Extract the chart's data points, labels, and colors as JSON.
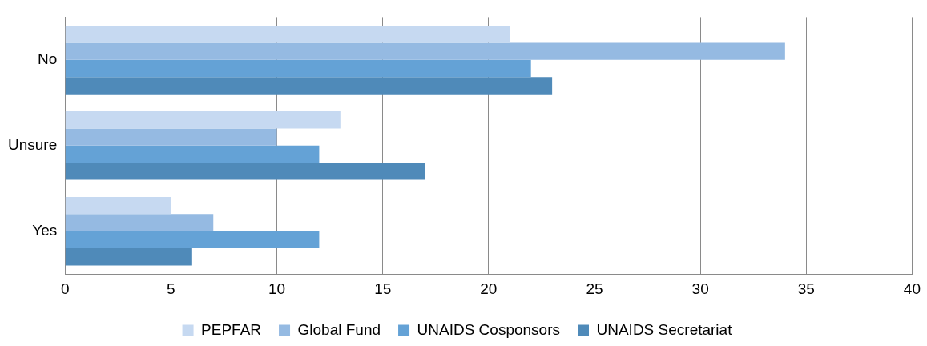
{
  "chart_data": {
    "type": "bar",
    "orientation": "horizontal",
    "categories": [
      "No",
      "Unsure",
      "Yes"
    ],
    "series": [
      {
        "name": "PEPFAR",
        "color": "#c6d9f1",
        "values": [
          21,
          13,
          5
        ]
      },
      {
        "name": "Global Fund",
        "color": "#95bae2",
        "values": [
          34,
          10,
          7
        ]
      },
      {
        "name": "UNAIDS Cosponsors",
        "color": "#64a2d6",
        "values": [
          22,
          12,
          12
        ]
      },
      {
        "name": "UNAIDS Secretariat",
        "color": "#4f8ab9",
        "values": [
          23,
          17,
          6
        ]
      }
    ],
    "xlim": [
      0,
      40
    ],
    "xticks": [
      0,
      5,
      10,
      15,
      20,
      25,
      30,
      35,
      40
    ],
    "grid": "x",
    "legend": "bottom"
  }
}
